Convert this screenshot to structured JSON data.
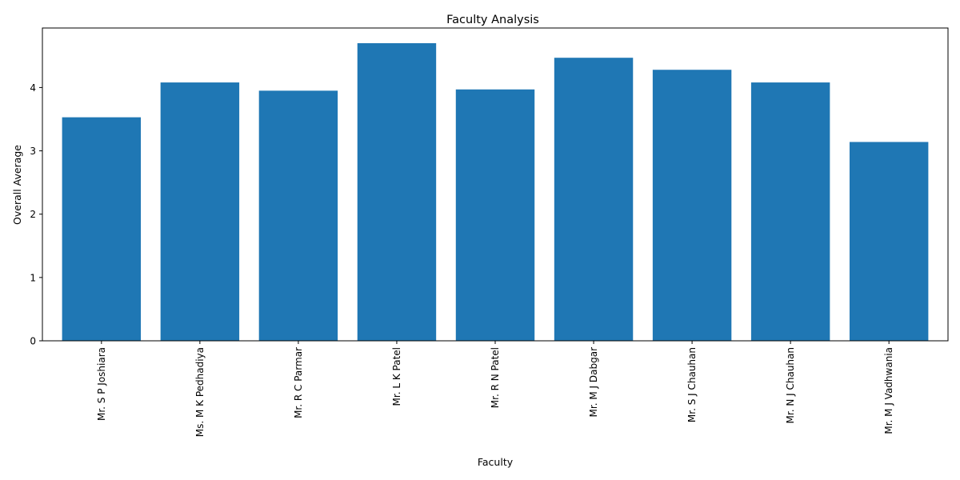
{
  "chart_data": {
    "type": "bar",
    "title": "Faculty Analysis",
    "xlabel": "Faculty",
    "ylabel": "Overall Average",
    "categories": [
      "Mr. S P Joshiara",
      "Ms. M K Pedhadiya",
      "Mr. R C Parmar",
      "Mr. L K Patel",
      "Mr. R N Patel",
      "Mr. M J Dabgar",
      "Mr. S J Chauhan",
      "Mr. N J Chauhan",
      "Mr. M J Vadhwania"
    ],
    "values": [
      3.53,
      4.08,
      3.95,
      4.7,
      3.97,
      4.47,
      4.28,
      4.08,
      3.14
    ],
    "ylim": [
      0,
      4.94
    ],
    "yticks": [
      0,
      1,
      2,
      3,
      4
    ],
    "grid": false,
    "bar_color": "#1f77b4"
  }
}
